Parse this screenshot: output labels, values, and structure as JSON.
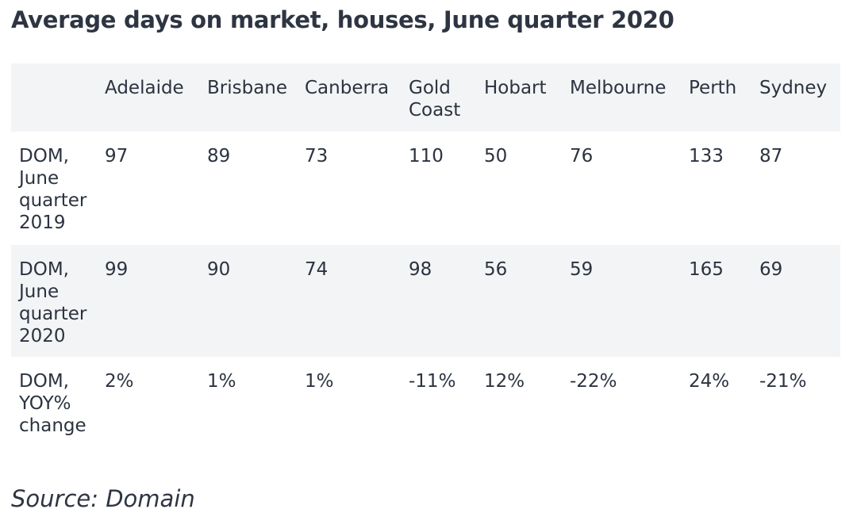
{
  "title": "Average days on market, houses, June quarter 2020",
  "source": "Source: Domain",
  "chart_data": {
    "type": "table",
    "title": "Average days on market, houses, June quarter 2020",
    "columns": [
      "Adelaide",
      "Brisbane",
      "Canberra",
      "Gold Coast",
      "Hobart",
      "Melbourne",
      "Perth",
      "Sydney"
    ],
    "rows": [
      {
        "label": "DOM, June quarter 2019",
        "values": [
          "97",
          "89",
          "73",
          "110",
          "50",
          "76",
          "133",
          "87"
        ]
      },
      {
        "label": "DOM, June quarter 2020",
        "values": [
          "99",
          "90",
          "74",
          "98",
          "56",
          "59",
          "165",
          "69"
        ]
      },
      {
        "label": "DOM, YOY% change",
        "values": [
          "2%",
          "1%",
          "1%",
          "-11%",
          "12%",
          "-22%",
          "24%",
          "-21%"
        ]
      }
    ]
  },
  "colors": {
    "text": "#2b3340",
    "shaded_row": "#f3f4f6",
    "background": "#ffffff"
  }
}
